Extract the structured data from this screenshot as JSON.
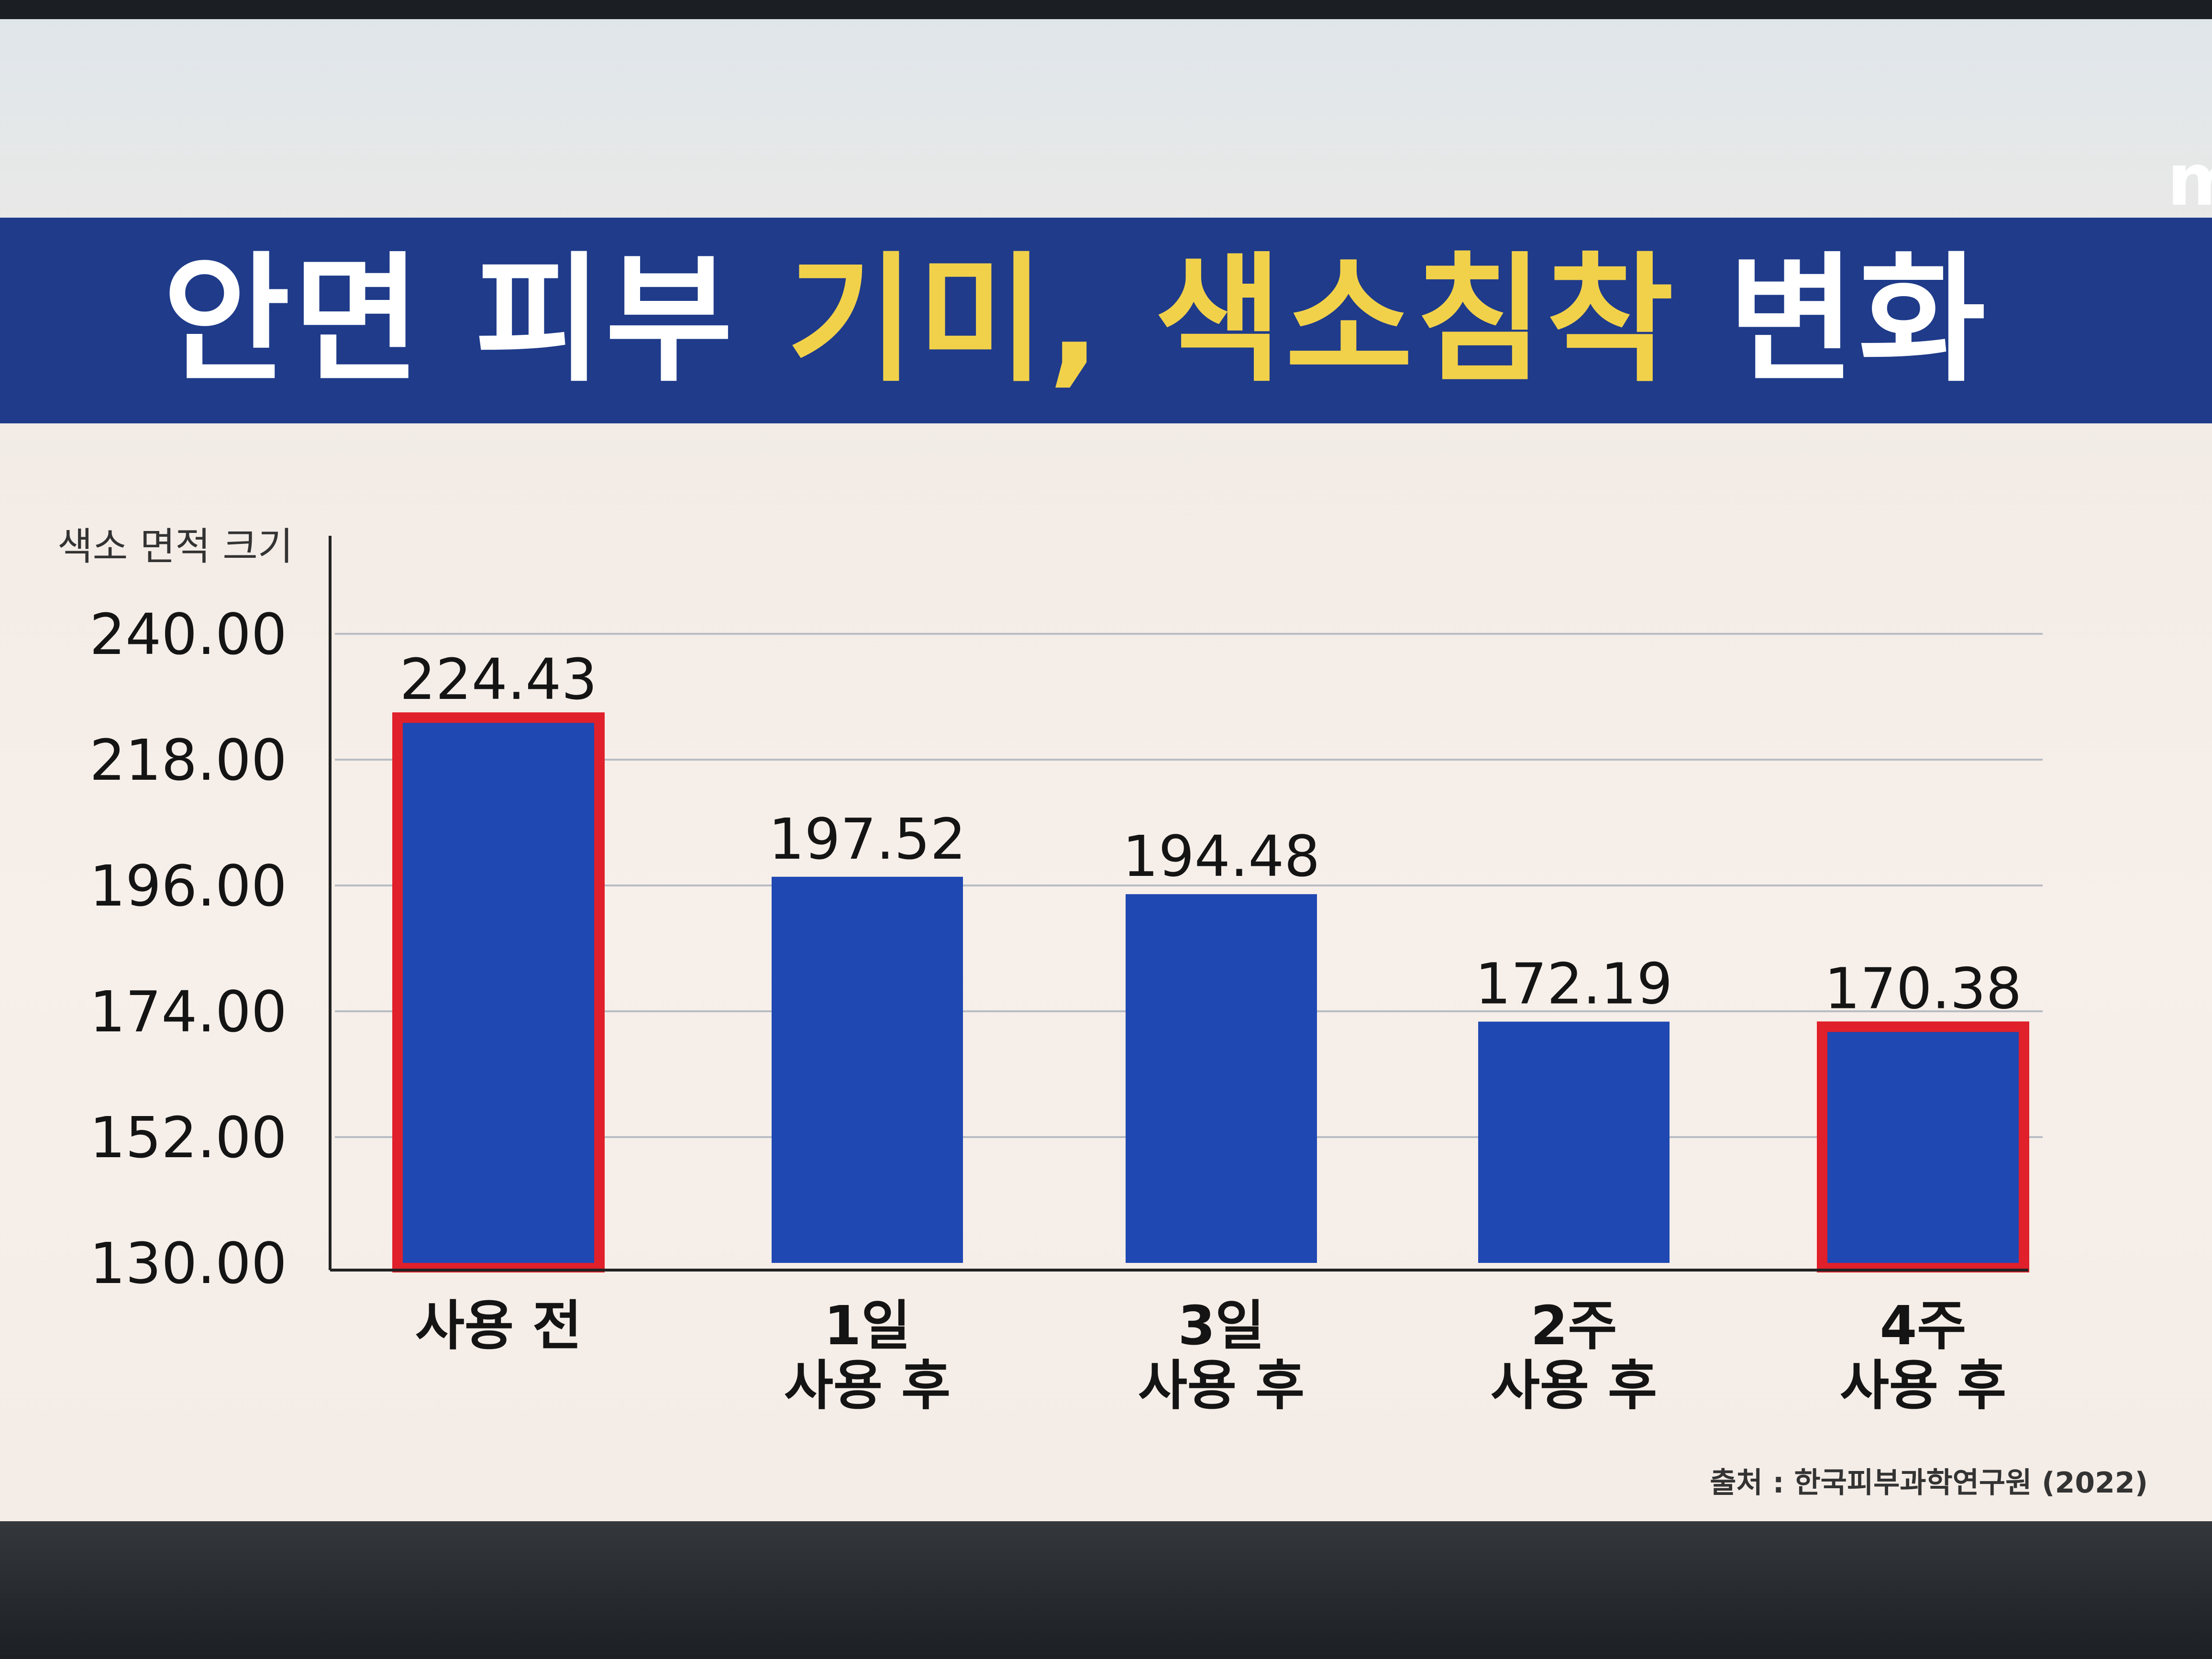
{
  "title": {
    "part_white": "안면 피부 ",
    "part_yellow": "기미, 색소침착 ",
    "part_end": "변화"
  },
  "brand_mark": "m",
  "source": "출처 : 한국피부과학연구원 (2022)",
  "colors": {
    "bar": "#1f48b2",
    "highlight_border": "#e0202a",
    "title_band": "#1f3b8a",
    "title_white": "#ffffff",
    "title_yellow": "#f2d14a"
  },
  "chart_data": {
    "type": "bar",
    "ylabel": "색소 면적 크기",
    "ylim": [
      130,
      240
    ],
    "y_ticks": [
      "130.00",
      "152.00",
      "174.00",
      "196.00",
      "218.00",
      "240.00"
    ],
    "y_tick_values": [
      130,
      152,
      174,
      196,
      218,
      240
    ],
    "categories": [
      [
        "사용 전"
      ],
      [
        "1일",
        "사용 후"
      ],
      [
        "3일",
        "사용 후"
      ],
      [
        "2주",
        "사용 후"
      ],
      [
        "4주",
        "사용 후"
      ]
    ],
    "values": [
      224.43,
      197.52,
      194.48,
      172.19,
      170.38
    ],
    "value_labels": [
      "224.43",
      "197.52",
      "194.48",
      "172.19",
      "170.38"
    ],
    "highlighted": [
      true,
      false,
      false,
      false,
      true
    ],
    "grid": true
  }
}
